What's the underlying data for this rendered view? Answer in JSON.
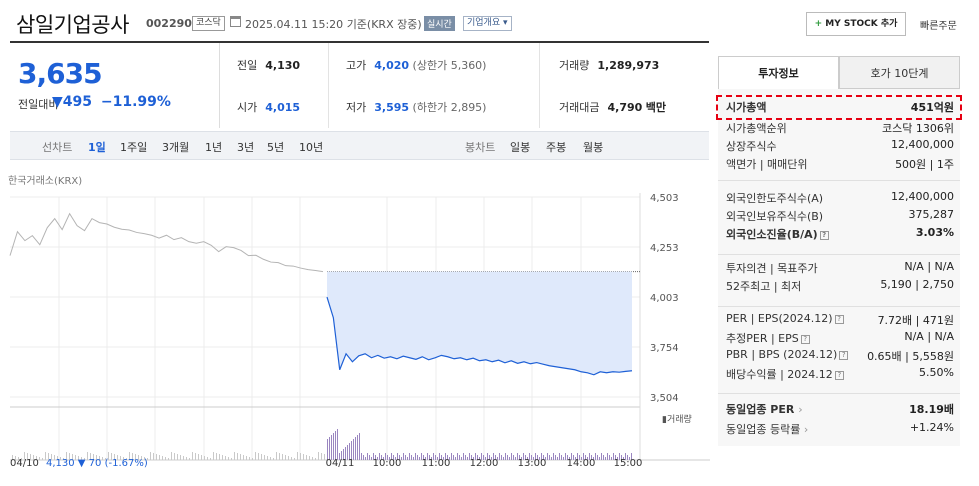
{
  "header": {
    "title": "삼일기업공사",
    "code": "002290",
    "market_badge": "코스닥",
    "datetime": "2025.04.11 15:20",
    "basis": "기준(KRX 장중)",
    "realtime_badge": "실시간",
    "overview_button": "기업개요",
    "mystock_plus": "+",
    "mystock_label": "MY STOCK 추가",
    "quick_order": "빠른주문"
  },
  "quote": {
    "price": "3,635",
    "change_label": "전일대비",
    "change_arrow": "▼",
    "change_value": "495",
    "change_pct": "−11.99%"
  },
  "stats": {
    "prev_label": "전일",
    "prev_value": "4,130",
    "high_label": "고가",
    "high_value": "4,020",
    "upper_limit": "(상한가 5,360)",
    "volume_label": "거래량",
    "volume_value": "1,289,973",
    "open_label": "시가",
    "open_value": "4,015",
    "low_label": "저가",
    "low_value": "3,595",
    "lower_limit": "(하한가 2,895)",
    "amount_label": "거래대금",
    "amount_value": "4,790",
    "amount_unit": "백만"
  },
  "range": {
    "line_label": "선차트",
    "line_items": [
      "1일",
      "1주일",
      "3개월",
      "1년",
      "3년",
      "5년",
      "10년"
    ],
    "selected": "1일",
    "candle_label": "봉차트",
    "candle_items": [
      "일봉",
      "주봉",
      "월봉"
    ]
  },
  "chart_data": {
    "type": "line",
    "source_label": "한국거래소(KRX)",
    "y_ticks": [
      "4,503",
      "4,253",
      "4,003",
      "3,754",
      "3,504"
    ],
    "ylim": [
      3504,
      4503
    ],
    "x_ticks": [
      "04/11",
      "10:00",
      "11:00",
      "12:00",
      "13:00",
      "14:00",
      "15:00"
    ],
    "prev_close": 4130,
    "prev_day": [
      4210,
      4330,
      4285,
      4310,
      4265,
      4350,
      4395,
      4340,
      4420,
      4360,
      4335,
      4395,
      4375,
      4368,
      4352,
      4342,
      4338,
      4326,
      4320,
      4312,
      4298,
      4312,
      4290,
      4300,
      4280,
      4272,
      4280,
      4262,
      4230,
      4255,
      4250,
      4236,
      4210,
      4212,
      4192,
      4178,
      4175,
      4160,
      4158,
      4148,
      4140,
      4136,
      4130
    ],
    "today": [
      4003,
      3900,
      3640,
      3720,
      3680,
      3710,
      3720,
      3700,
      3712,
      3698,
      3705,
      3695,
      3708,
      3700,
      3692,
      3705,
      3690,
      3700,
      3712,
      3705,
      3695,
      3700,
      3690,
      3698,
      3685,
      3690,
      3680,
      3688,
      3675,
      3685,
      3672,
      3680,
      3670,
      3676,
      3668,
      3660,
      3655,
      3650,
      3645,
      3640,
      3630,
      3625,
      3615,
      3630,
      3625,
      3630,
      3628,
      3632,
      3635
    ],
    "volume_label": "거래량",
    "footer": {
      "date": "04/10",
      "price": "4,130",
      "arrow": "▼",
      "change": "70",
      "pct": "(-1.67%)"
    }
  },
  "side": {
    "tab_invest": "투자정보",
    "tab_hoga": "호가 10단계",
    "rows": [
      {
        "k": "시가총액",
        "v": "451억원"
      },
      {
        "k": "시가총액순위",
        "v": "코스닥 1306위"
      },
      {
        "k": "상장주식수",
        "v": "12,400,000"
      },
      {
        "k": "액면가 | 매매단위",
        "v": "500원 | 1주"
      },
      {
        "k": "외국인한도주식수(A)",
        "v": "12,400,000"
      },
      {
        "k": "외국인보유주식수(B)",
        "v": "375,287"
      },
      {
        "k": "외국인소진율(B/A)",
        "v": "3.03%"
      },
      {
        "k": "투자의견 | 목표주가",
        "v": "N/A | N/A"
      },
      {
        "k": "52주최고 | 최저",
        "v": "5,190 | 2,750"
      },
      {
        "k": "PER | EPS(2024.12)",
        "v": "7.72배 | 471원"
      },
      {
        "k": "추정PER | EPS",
        "v": "N/A | N/A"
      },
      {
        "k": "PBR | BPS (2024.12)",
        "v": "0.65배 | 5,558원"
      },
      {
        "k": "배당수익률 | 2024.12",
        "v": "5.50%"
      },
      {
        "k": "동일업종 PER",
        "v": "18.19배"
      },
      {
        "k": "동일업종 등락률",
        "v": "+1.24%"
      }
    ]
  },
  "colors": {
    "down": "#1e60d6",
    "up": "#e0282e",
    "fill": "#dfe9fb",
    "highlight": "#e60012"
  }
}
